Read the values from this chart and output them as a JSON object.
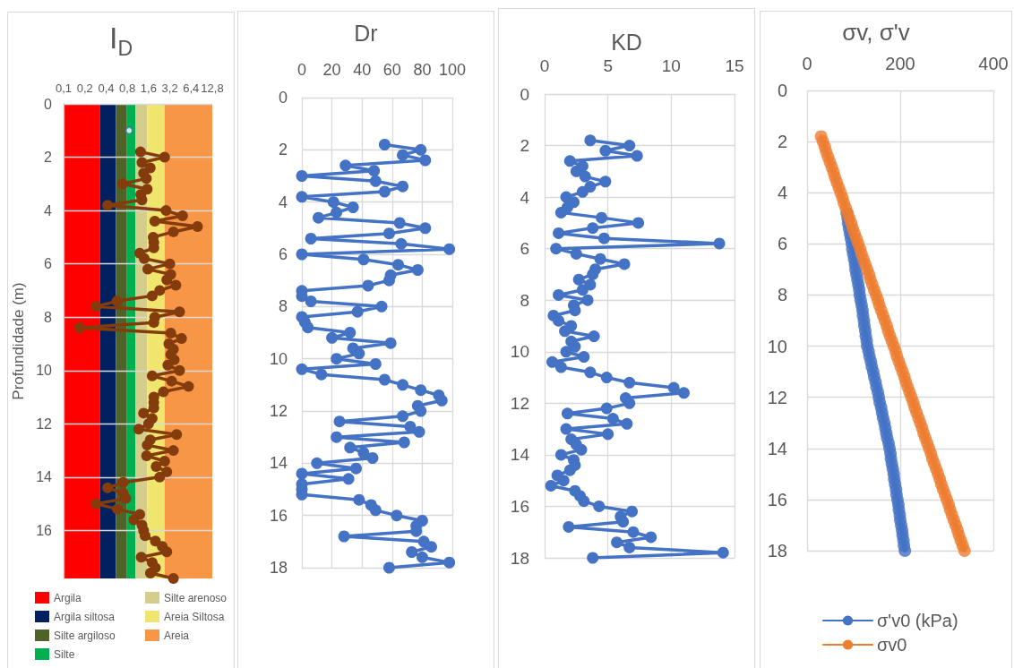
{
  "chart_data": [
    {
      "type": "line",
      "title": "I$_{D}$",
      "ylabel": "Profundidade (m)",
      "log": "x",
      "xlim": [
        0.1,
        12.8
      ],
      "xticks": [
        {
          "value": 0.1,
          "label": "0,1"
        },
        {
          "value": 0.2,
          "label": "0,2"
        },
        {
          "value": 0.4,
          "label": "0,4"
        },
        {
          "value": 0.8,
          "label": "0,8"
        },
        {
          "value": 1.6,
          "label": "1,6"
        },
        {
          "value": 3.2,
          "label": "3,2"
        },
        {
          "value": 6.4,
          "label": "6,4"
        },
        {
          "value": 12.8,
          "label": "12,8"
        }
      ],
      "ylim": [
        17.8,
        0
      ],
      "yticks": [
        0,
        2,
        4,
        6,
        8,
        10,
        12,
        14,
        16
      ],
      "grid": "y",
      "marker": "circle",
      "legend": "bottom",
      "bands": [
        {
          "axis": "x",
          "from": 0.1,
          "to": 0.33,
          "label": "Argila",
          "color": "#ff0000"
        },
        {
          "axis": "x",
          "from": 0.33,
          "to": 0.55,
          "label": "Argila siltosa",
          "color": "#002060"
        },
        {
          "axis": "x",
          "from": 0.55,
          "to": 0.79,
          "label": "Silte argiloso",
          "color": "#4f6228"
        },
        {
          "axis": "x",
          "from": 0.79,
          "to": 1.04,
          "label": "Silte",
          "color": "#00b050"
        },
        {
          "axis": "x",
          "from": 1.04,
          "to": 1.53,
          "label": "Silte arenoso",
          "color": "#d4cd8c"
        },
        {
          "axis": "x",
          "from": 1.53,
          "to": 2.7,
          "label": "Areia Siltosa",
          "color": "#f0e66e"
        },
        {
          "axis": "x",
          "from": 2.7,
          "to": 12.8,
          "label": "Areia",
          "color": "#f79646"
        }
      ],
      "series": [
        {
          "color": "#843c0c",
          "x": [
            1.23,
            2.7,
            1.29,
            1.69,
            1.36,
            1.49,
            0.69,
            1.53,
            1.24,
            1.29,
            0.42,
            2.83,
            4.85,
            1.96,
            7.9,
            3.6,
            1.86,
            1.9,
            1.9,
            1.2,
            1.39,
            3.2,
            1.56,
            3.3,
            2.9,
            3.9,
            2.3,
            1.8,
            0.57,
            0.29,
            4.4,
            1.96,
            1.9,
            0.17,
            3.3,
            4.7,
            3.1,
            3.6,
            3.3,
            3.7,
            3.0,
            4.4,
            1.8,
            3.4,
            5.9,
            2.6,
            1.9,
            1.9,
            1.9,
            1.36,
            1.8,
            1.6,
            1.16,
            4.0,
            1.69,
            1.53,
            3.6,
            1.5,
            2.7,
            2.05,
            2.9,
            2.3,
            0.7,
            0.42,
            0.7,
            0.76,
            0.29,
            0.58,
            1.2,
            0.99,
            1.29,
            1.36,
            1.43,
            2.0,
            2.5,
            2.9,
            1.26,
            1.8,
            2.0,
            1.7,
            3.6
          ],
          "values": [
            1.8,
            2,
            2.2,
            2.4,
            2.6,
            2.8,
            3,
            3.2,
            3.4,
            3.6,
            3.8,
            4,
            4.2,
            4.4,
            4.6,
            4.8,
            5,
            5.2,
            5.4,
            5.6,
            5.8,
            6,
            6.2,
            6.4,
            6.6,
            6.8,
            7,
            7.2,
            7.4,
            7.6,
            7.8,
            8,
            8.2,
            8.4,
            8.6,
            8.8,
            9,
            9.2,
            9.4,
            9.6,
            9.8,
            10,
            10.2,
            10.4,
            10.6,
            10.8,
            11,
            11.2,
            11.4,
            11.6,
            11.8,
            12,
            12.2,
            12.4,
            12.6,
            12.8,
            13,
            13.2,
            13.4,
            13.6,
            13.8,
            14,
            14.2,
            14.4,
            14.6,
            14.8,
            15,
            15.2,
            15.4,
            15.6,
            15.8,
            16,
            16.2,
            16.4,
            16.6,
            16.8,
            17,
            17.2,
            17.4,
            17.6,
            17.8
          ]
        },
        {
          "type": "scatter",
          "color": "#4472c4",
          "x": [
            0.85
          ],
          "values": [
            1.0
          ]
        }
      ]
    },
    {
      "type": "line",
      "title": "Dr",
      "xlim": [
        0,
        100
      ],
      "xticks": [
        0,
        20,
        40,
        60,
        80,
        100
      ],
      "ylim": [
        18,
        0
      ],
      "yticks": [
        0,
        2,
        4,
        6,
        8,
        10,
        12,
        14,
        16,
        18
      ],
      "grid": true,
      "marker": "circle",
      "series": [
        {
          "color": "#4472c4",
          "x": [
            55,
            79,
            67,
            82,
            29,
            48,
            0,
            49,
            67,
            55,
            0,
            21,
            34,
            23,
            11,
            65,
            82,
            58,
            6,
            66,
            98,
            0,
            41,
            64,
            77,
            59,
            58,
            44,
            0,
            0,
            6,
            53,
            37,
            0,
            2,
            4,
            32,
            20,
            59,
            34,
            38,
            23,
            49,
            0,
            13,
            55,
            67,
            79,
            91,
            93,
            77,
            79,
            67,
            25,
            72,
            78,
            23,
            68,
            32,
            41,
            47,
            10,
            36,
            0,
            31,
            0,
            0,
            0,
            38,
            46,
            49,
            63,
            80,
            76,
            76,
            28,
            81,
            86,
            73,
            80,
            98,
            58
          ],
          "values": [
            1.8,
            2,
            2.2,
            2.4,
            2.6,
            2.8,
            3,
            3.2,
            3.4,
            3.6,
            3.8,
            4,
            4.2,
            4.4,
            4.6,
            4.8,
            5,
            5.2,
            5.4,
            5.6,
            5.8,
            6,
            6.2,
            6.4,
            6.6,
            6.8,
            7,
            7.2,
            7.4,
            7.6,
            7.8,
            8,
            8.2,
            8.4,
            8.6,
            8.8,
            9,
            9.2,
            9.4,
            9.6,
            9.8,
            10,
            10.2,
            10.4,
            10.6,
            10.8,
            11,
            11.2,
            11.4,
            11.6,
            11.8,
            12,
            12.2,
            12.4,
            12.6,
            12.8,
            13,
            13.2,
            13.4,
            13.6,
            13.8,
            14,
            14.2,
            14.4,
            14.6,
            14.8,
            15,
            15.2,
            15.4,
            15.6,
            15.8,
            16,
            16.2,
            16.4,
            16.6,
            16.8,
            17,
            17.2,
            17.4,
            17.6,
            17.8,
            18
          ]
        }
      ]
    },
    {
      "type": "line",
      "title": "KD",
      "xlim": [
        0,
        15
      ],
      "xticks": [
        0,
        5,
        10,
        15
      ],
      "ylim": [
        18,
        0
      ],
      "yticks": [
        0,
        2,
        4,
        6,
        8,
        10,
        12,
        14,
        16,
        18
      ],
      "grid": true,
      "marker": "circle",
      "series": [
        {
          "color": "#4472c4",
          "x": [
            3.6,
            6.7,
            4.8,
            7.3,
            2.0,
            3.0,
            2.5,
            3.2,
            4.8,
            3.6,
            3.0,
            1.7,
            2.3,
            1.8,
            1.3,
            4.5,
            7.4,
            3.8,
            1.1,
            4.7,
            13.8,
            0.9,
            2.5,
            4.4,
            6.3,
            4.0,
            3.8,
            2.7,
            3.6,
            3.0,
            1.1,
            3.4,
            2.3,
            2.4,
            0.7,
            1.1,
            2.1,
            1.6,
            3.9,
            2.1,
            2.4,
            1.7,
            3.1,
            0.6,
            1.3,
            3.6,
            4.9,
            6.7,
            10.2,
            11.0,
            6.4,
            6.7,
            4.9,
            1.8,
            5.4,
            6.5,
            1.7,
            5.0,
            2.1,
            2.5,
            2.9,
            1.3,
            2.3,
            2.4,
            2.0,
            1.0,
            1.5,
            0.5,
            2.4,
            2.8,
            3.1,
            4.3,
            6.9,
            6.0,
            6.2,
            1.9,
            7.0,
            8.4,
            5.7,
            6.7,
            14.1,
            3.8
          ],
          "values": [
            1.8,
            2,
            2.2,
            2.4,
            2.6,
            2.8,
            3,
            3.2,
            3.4,
            3.6,
            3.8,
            4,
            4.2,
            4.4,
            4.6,
            4.8,
            5,
            5.2,
            5.4,
            5.6,
            5.8,
            6,
            6.2,
            6.4,
            6.6,
            6.8,
            7,
            7.2,
            7.4,
            7.6,
            7.8,
            8,
            8.2,
            8.4,
            8.6,
            8.8,
            9,
            9.2,
            9.4,
            9.6,
            9.8,
            10,
            10.2,
            10.4,
            10.6,
            10.8,
            11,
            11.2,
            11.4,
            11.6,
            11.8,
            12,
            12.2,
            12.4,
            12.6,
            12.8,
            13,
            13.2,
            13.4,
            13.6,
            13.8,
            14,
            14.2,
            14.4,
            14.6,
            14.8,
            15,
            15.2,
            15.4,
            15.6,
            15.8,
            16,
            16.2,
            16.4,
            16.6,
            16.8,
            17,
            17.2,
            17.4,
            17.6,
            17.8,
            18
          ]
        }
      ]
    },
    {
      "type": "line",
      "title": "σv, σ'v",
      "xlim": [
        0,
        400
      ],
      "xticks": [
        0,
        200,
        400
      ],
      "ylim": [
        18,
        0
      ],
      "yticks": [
        0,
        2,
        4,
        6,
        8,
        10,
        12,
        14,
        16,
        18
      ],
      "grid": true,
      "marker": "circle",
      "legend": "bottom",
      "series": [
        {
          "name": "σ'v0 (kPa)",
          "color": "#4472c4",
          "x": [
            85,
            87,
            88,
            90,
            92,
            94,
            96,
            97,
            99,
            101,
            103,
            104,
            106,
            108,
            110,
            112,
            113,
            115,
            117,
            119,
            120,
            122,
            123,
            125,
            126,
            128,
            129,
            132,
            134,
            137,
            139,
            142,
            144,
            147,
            149,
            152,
            154,
            156,
            159,
            161,
            163,
            166,
            168,
            170,
            172,
            175,
            177,
            179,
            180,
            182,
            184,
            186,
            187,
            189,
            191,
            192,
            194,
            196,
            197,
            199,
            200,
            202,
            204,
            205,
            207,
            208,
            210
          ],
          "values": [
            4.8,
            5,
            5.2,
            5.4,
            5.6,
            5.8,
            6,
            6.2,
            6.4,
            6.6,
            6.8,
            7,
            7.2,
            7.4,
            7.6,
            7.8,
            8,
            8.2,
            8.4,
            8.6,
            8.8,
            9,
            9.2,
            9.4,
            9.6,
            9.8,
            10,
            10.2,
            10.4,
            10.6,
            10.8,
            11,
            11.2,
            11.4,
            11.6,
            11.8,
            12,
            12.2,
            12.4,
            12.6,
            12.8,
            13,
            13.2,
            13.4,
            13.6,
            13.8,
            14,
            14.2,
            14.4,
            14.6,
            14.8,
            15,
            15.2,
            15.4,
            15.6,
            15.8,
            16,
            16.2,
            16.4,
            16.6,
            16.8,
            17,
            17.2,
            17.4,
            17.6,
            17.8,
            18
          ]
        },
        {
          "name": "σv0",
          "color": "#ed7d31",
          "x": [
            30,
            34,
            38,
            41,
            45,
            49,
            53,
            57,
            60,
            64,
            68,
            72,
            76,
            79,
            83,
            87,
            91,
            95,
            98,
            102,
            106,
            110,
            114,
            117,
            121,
            125,
            129,
            133,
            136,
            140,
            144,
            148,
            152,
            155,
            159,
            163,
            167,
            171,
            174,
            178,
            182,
            186,
            190,
            193,
            197,
            201,
            205,
            209,
            212,
            216,
            220,
            224,
            228,
            231,
            235,
            239,
            243,
            247,
            250,
            254,
            258,
            262,
            266,
            269,
            273,
            277,
            281,
            285,
            288,
            292,
            296,
            300,
            304,
            307,
            311,
            315,
            319,
            323,
            326,
            330,
            334,
            338
          ],
          "values": [
            1.8,
            2,
            2.2,
            2.4,
            2.6,
            2.8,
            3,
            3.2,
            3.4,
            3.6,
            3.8,
            4,
            4.2,
            4.4,
            4.6,
            4.8,
            5,
            5.2,
            5.4,
            5.6,
            5.8,
            6,
            6.2,
            6.4,
            6.6,
            6.8,
            7,
            7.2,
            7.4,
            7.6,
            7.8,
            8,
            8.2,
            8.4,
            8.6,
            8.8,
            9,
            9.2,
            9.4,
            9.6,
            9.8,
            10,
            10.2,
            10.4,
            10.6,
            10.8,
            11,
            11.2,
            11.4,
            11.6,
            11.8,
            12,
            12.2,
            12.4,
            12.6,
            12.8,
            13,
            13.2,
            13.4,
            13.6,
            13.8,
            14,
            14.2,
            14.4,
            14.6,
            14.8,
            15,
            15.2,
            15.4,
            15.6,
            15.8,
            16,
            16.2,
            16.4,
            16.6,
            16.8,
            17,
            17.2,
            17.4,
            17.6,
            17.8,
            18
          ]
        }
      ]
    }
  ]
}
